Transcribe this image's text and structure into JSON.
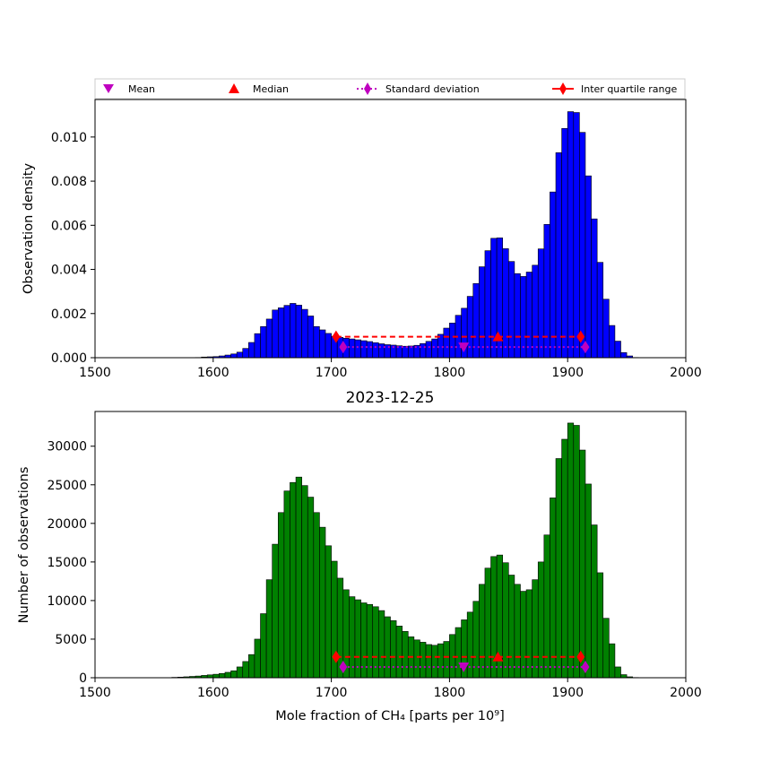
{
  "chart_data": [
    {
      "type": "bar",
      "title": "",
      "xlabel": "",
      "ylabel": "Observation density",
      "xlim": [
        1500,
        2000
      ],
      "ylim": [
        0,
        0.0117
      ],
      "xticks": [
        "1500",
        "1600",
        "1700",
        "1800",
        "1900",
        "2000"
      ],
      "yticks": [
        "0.000",
        "0.002",
        "0.004",
        "0.006",
        "0.008",
        "0.010"
      ],
      "bin_start": 1565,
      "bin_width": 5,
      "bar_color": "#0000ff",
      "values": [
        1e-06,
        1e-06,
        2e-06,
        5e-06,
        1e-05,
        3e-05,
        4e-05,
        5e-05,
        8e-05,
        0.00012,
        0.00017,
        0.00025,
        0.00042,
        0.00069,
        0.00109,
        0.00141,
        0.00175,
        0.00216,
        0.00226,
        0.00237,
        0.00246,
        0.00238,
        0.00219,
        0.00189,
        0.00141,
        0.00126,
        0.0011,
        0.00097,
        0.00092,
        0.00088,
        0.00085,
        0.00081,
        0.00077,
        0.00073,
        0.00068,
        0.00063,
        0.00059,
        0.00057,
        0.00054,
        0.00052,
        0.00053,
        0.00056,
        0.00064,
        0.00074,
        0.00085,
        0.00106,
        0.00134,
        0.00157,
        0.00192,
        0.00224,
        0.00278,
        0.00336,
        0.00412,
        0.00485,
        0.00541,
        0.00543,
        0.00494,
        0.00436,
        0.00381,
        0.00368,
        0.00388,
        0.00419,
        0.00493,
        0.00604,
        0.00751,
        0.00929,
        0.01039,
        0.01115,
        0.01111,
        0.01021,
        0.00824,
        0.00629,
        0.00432,
        0.00265,
        0.00146,
        0.00075,
        0.00023,
        8e-05,
        1e-05
      ],
      "series": [
        {
          "name": "Mean",
          "marker": "triangle-down",
          "color": "#bf00bf",
          "points": [
            [
              1812,
              0.00048
            ]
          ]
        },
        {
          "name": "Median",
          "marker": "triangle-up",
          "color": "#ff0000",
          "points": [
            [
              1841,
              0.00095
            ]
          ]
        },
        {
          "name": "Standard deviation",
          "marker": "diamond",
          "line": "dotted",
          "color": "#bf00bf",
          "points": [
            [
              1710,
              0.00048
            ],
            [
              1915,
              0.00048
            ]
          ]
        },
        {
          "name": "Inter quartile range",
          "marker": "diamond",
          "line": "dashed",
          "color": "#ff0000",
          "points": [
            [
              1704,
              0.00095
            ],
            [
              1911,
              0.00095
            ]
          ]
        }
      ],
      "legend": "top, above plot, 4 columns"
    },
    {
      "type": "bar",
      "title": "2023-12-25",
      "xlabel": "Mole fraction of CH₄ [parts per 10⁹]",
      "ylabel": "Number of observations",
      "xlim": [
        1500,
        2000
      ],
      "ylim": [
        0,
        34500
      ],
      "xticks": [
        "1500",
        "1600",
        "1700",
        "1800",
        "1900",
        "2000"
      ],
      "yticks": [
        "0",
        "5000",
        "10000",
        "15000",
        "20000",
        "25000",
        "30000"
      ],
      "bin_start": 1565,
      "bin_width": 5,
      "bar_color": "#008000",
      "values": [
        50,
        80,
        120,
        170,
        220,
        300,
        370,
        450,
        550,
        700,
        900,
        1400,
        2100,
        3000,
        5000,
        8300,
        12700,
        17300,
        21400,
        24200,
        25300,
        26000,
        24900,
        23400,
        21400,
        19500,
        17100,
        15100,
        12900,
        11400,
        10500,
        10100,
        9700,
        9500,
        9200,
        8700,
        7900,
        7400,
        6700,
        6000,
        5300,
        4900,
        4600,
        4300,
        4200,
        4400,
        4700,
        5600,
        6500,
        7500,
        8500,
        9900,
        12100,
        14200,
        15700,
        15900,
        14900,
        13300,
        12100,
        11200,
        11400,
        12700,
        15000,
        18500,
        23300,
        28400,
        30900,
        33000,
        32700,
        29500,
        25100,
        19800,
        13600,
        7700,
        4400,
        1400,
        400,
        120,
        30
      ],
      "series": [
        {
          "name": "Mean",
          "marker": "triangle-down",
          "color": "#bf00bf",
          "points": [
            [
              1812,
              1400
            ]
          ]
        },
        {
          "name": "Median",
          "marker": "triangle-up",
          "color": "#ff0000",
          "points": [
            [
              1841,
              2700
            ]
          ]
        },
        {
          "name": "Standard deviation",
          "marker": "diamond",
          "line": "dotted",
          "color": "#bf00bf",
          "points": [
            [
              1710,
              1400
            ],
            [
              1915,
              1400
            ]
          ]
        },
        {
          "name": "Inter quartile range",
          "marker": "diamond",
          "line": "dashed",
          "color": "#ff0000",
          "points": [
            [
              1704,
              2700
            ],
            [
              1911,
              2700
            ]
          ]
        }
      ]
    }
  ]
}
